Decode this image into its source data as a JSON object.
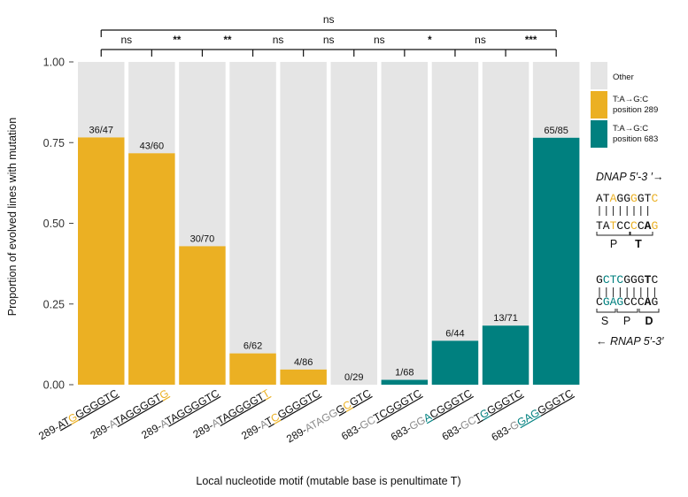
{
  "chart_data": {
    "type": "bar",
    "stacked": true,
    "xlabel": "Local nucleotide motif (mutable base is penultimate T)",
    "ylabel": "Proportion of evolved lines with mutation",
    "ylim": [
      0,
      1
    ],
    "yticks": [
      "0.00",
      "0.25",
      "0.50",
      "0.75",
      "1.00"
    ],
    "grid": false,
    "legend_placement": "right",
    "colors": {
      "other": "#e5e5e5",
      "pos289": "#ebb023",
      "pos683": "#00807f",
      "text": "#111111",
      "muted": "#8c8c8c"
    },
    "legend": [
      {
        "key": "other",
        "lines": [
          "Other"
        ]
      },
      {
        "key": "pos289",
        "lines": [
          "T:A→G:C",
          "position 289"
        ]
      },
      {
        "key": "pos683",
        "lines": [
          "T:A→G:C",
          "position 683"
        ]
      }
    ],
    "categories": [
      {
        "prefix": "289-",
        "seq": [
          [
            "AT",
            "u"
          ],
          [
            "G",
            "h"
          ],
          [
            "GGGGTC",
            "u"
          ]
        ],
        "value": 0.766,
        "label": "36/47",
        "series": "pos289"
      },
      {
        "prefix": "289-",
        "seq": [
          [
            "A",
            "m"
          ],
          [
            "TAGGGGT",
            "u"
          ],
          [
            "G",
            "h"
          ]
        ],
        "value": 0.717,
        "label": "43/60",
        "series": "pos289"
      },
      {
        "prefix": "289-",
        "seq": [
          [
            "A",
            "m"
          ],
          [
            "TAGGGGTC",
            "u"
          ]
        ],
        "value": 0.429,
        "label": "30/70",
        "series": "pos289"
      },
      {
        "prefix": "289-",
        "seq": [
          [
            "A",
            "m"
          ],
          [
            "TAGGGGT",
            "u"
          ],
          [
            "T",
            "h"
          ]
        ],
        "value": 0.097,
        "label": "6/62",
        "series": "pos289"
      },
      {
        "prefix": "289-",
        "seq": [
          [
            "A",
            "m"
          ],
          [
            "T",
            "u"
          ],
          [
            "C",
            "h"
          ],
          [
            "GGGGTC",
            "u"
          ]
        ],
        "value": 0.047,
        "label": "4/86",
        "series": "pos289"
      },
      {
        "prefix": "289-",
        "seq": [
          [
            "ATAGG",
            "m"
          ],
          [
            "G",
            "u"
          ],
          [
            "C",
            "h"
          ],
          [
            "GTC",
            "u"
          ]
        ],
        "value": 0.0,
        "label": "0/29",
        "series": "pos289"
      },
      {
        "prefix": "683-",
        "seq": [
          [
            "GC",
            "m"
          ],
          [
            "TCGGGTC",
            "u"
          ]
        ],
        "value": 0.015,
        "label": "1/68",
        "series": "pos683"
      },
      {
        "prefix": "683-",
        "seq": [
          [
            "GG",
            "m"
          ],
          [
            "A",
            "h"
          ],
          [
            "CGGGTC",
            "u"
          ]
        ],
        "value": 0.136,
        "label": "6/44",
        "series": "pos683"
      },
      {
        "prefix": "683-",
        "seq": [
          [
            "GC",
            "m"
          ],
          [
            "T",
            "u"
          ],
          [
            "G",
            "h"
          ],
          [
            "GGGTC",
            "u"
          ]
        ],
        "value": 0.183,
        "label": "13/71",
        "series": "pos683"
      },
      {
        "prefix": "683-",
        "seq": [
          [
            "G",
            "m"
          ],
          [
            "GAG",
            "h"
          ],
          [
            "GGGTC",
            "u"
          ]
        ],
        "value": 0.765,
        "label": "65/85",
        "series": "pos683"
      }
    ],
    "significance": {
      "pairs": [
        "ns",
        "**",
        "**",
        "ns",
        "ns",
        "ns",
        "*",
        "ns",
        "***"
      ],
      "overall": "ns"
    },
    "annotation": {
      "dnap_label": "DNAP 5′-3 ′→",
      "dnap_top": [
        [
          "AT",
          "k"
        ],
        [
          "A",
          "y"
        ],
        [
          "GG",
          "k"
        ],
        [
          "G",
          "y"
        ],
        [
          "GT",
          "k"
        ],
        [
          "C",
          "y"
        ]
      ],
      "dnap_bottom": [
        [
          "TA",
          "k"
        ],
        [
          "T",
          "y"
        ],
        [
          "CC",
          "k"
        ],
        [
          "C",
          "y"
        ],
        [
          "C",
          "k"
        ],
        [
          "A",
          "b"
        ],
        [
          "G",
          "y"
        ]
      ],
      "dnap_markers": [
        "P",
        "T"
      ],
      "rnap_top": [
        [
          "G",
          "k"
        ],
        [
          "CTC",
          "t"
        ],
        [
          "GGG",
          "k"
        ],
        [
          "T",
          "b"
        ],
        [
          "C",
          "k"
        ]
      ],
      "rnap_bottom": [
        [
          "C",
          "k"
        ],
        [
          "GAG",
          "t"
        ],
        [
          "CCC",
          "k"
        ],
        [
          "A",
          "b"
        ],
        [
          "G",
          "k"
        ]
      ],
      "rnap_markers": [
        "S",
        "P",
        "D"
      ],
      "rnap_label": "← RNAP 5′-3′"
    }
  }
}
